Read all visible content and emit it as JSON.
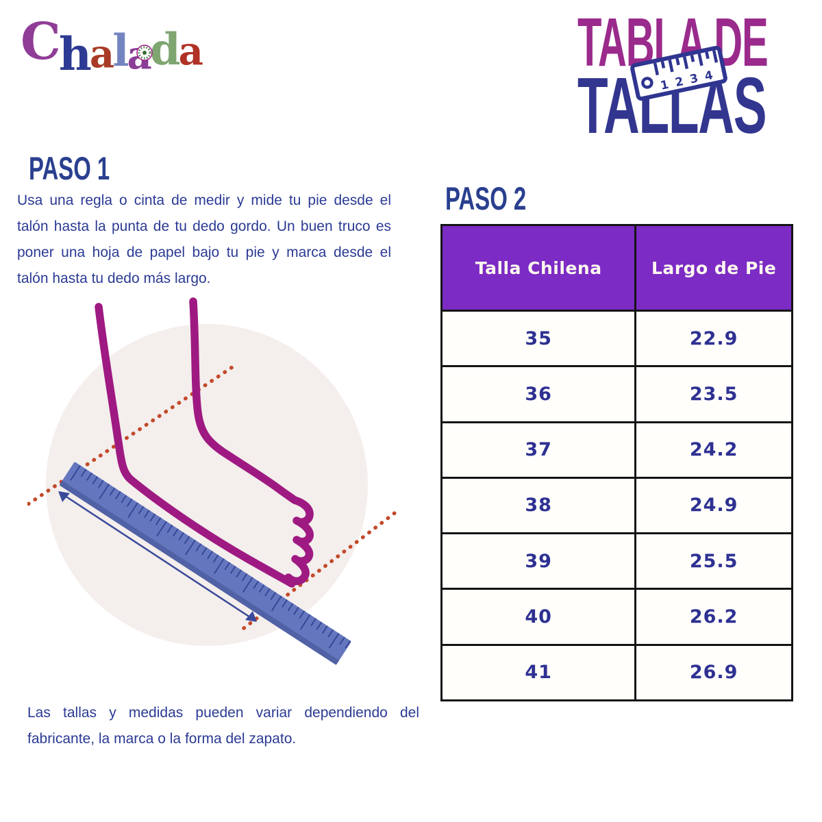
{
  "brand": {
    "name": "Chalada",
    "letters": [
      {
        "char": "C",
        "color": "#8f3d96"
      },
      {
        "char": "h",
        "color": "#2d3a94"
      },
      {
        "char": "a",
        "color": "#a93b26"
      },
      {
        "char": "l",
        "color": "#7385c0"
      },
      {
        "char": "a",
        "color": "#8a3e98"
      },
      {
        "char": "d",
        "color": "#7fa571"
      },
      {
        "char": "a",
        "color": "#b03226"
      }
    ]
  },
  "title": {
    "line1": "TABLA DE",
    "line2": "TALLAS",
    "ruler_numbers": [
      "1",
      "2",
      "3",
      "4"
    ]
  },
  "step1": {
    "heading": "PASO 1",
    "body": "Usa una regla o cinta de medir y mide tu pie desde el talón hasta la punta de tu dedo gordo. Un buen truco es poner una hoja de papel bajo tu pie y marca desde el talón hasta tu dedo más largo."
  },
  "step2": {
    "heading": "PASO 2"
  },
  "table": {
    "headers": [
      "Talla Chilena",
      "Largo de Pie"
    ],
    "rows": [
      [
        "35",
        "22.9"
      ],
      [
        "36",
        "23.5"
      ],
      [
        "37",
        "24.2"
      ],
      [
        "38",
        "24.9"
      ],
      [
        "39",
        "25.5"
      ],
      [
        "40",
        "26.2"
      ],
      [
        "41",
        "26.9"
      ]
    ]
  },
  "disclaimer": {
    "text": "Las tallas y medidas pueden variar dependiendo del fabricante, la marca o la forma del zapato."
  },
  "colors": {
    "title_magenta": "#9a2b8c",
    "title_indigo": "#32368f",
    "heading_blue": "#2a3f8f",
    "body_text": "#2b3a94",
    "table_header_bg": "#7c2bc4",
    "table_header_text": "#fdf8f0",
    "table_cell_text": "#2e3192",
    "table_border": "#141414",
    "foot_stroke": "#9e1a82",
    "ruler_fill": "#6477be",
    "ruler_tick": "#2b3a8f",
    "dot_color": "#c2492a",
    "arrow_color": "#3a4a9a",
    "circle_fill": "#f4eeec",
    "ruler_icon_blue": "#2f3590"
  }
}
